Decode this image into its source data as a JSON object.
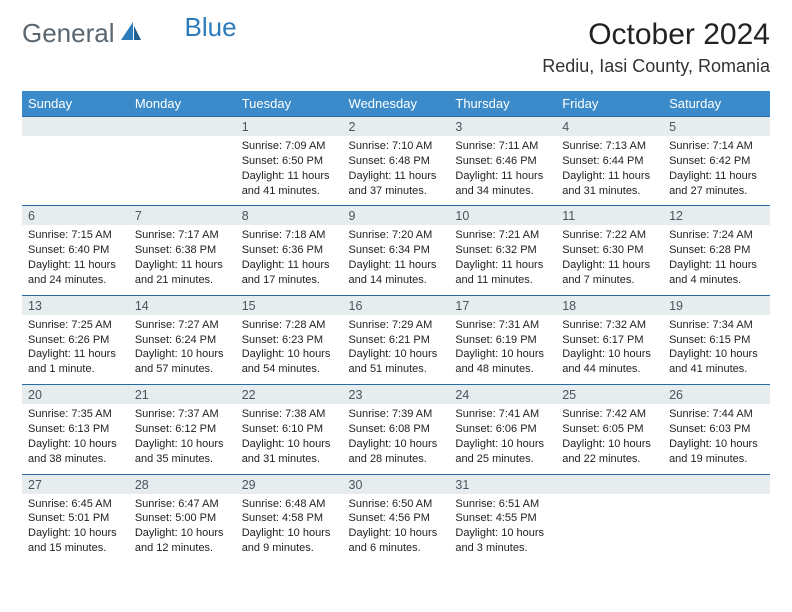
{
  "logo": {
    "text1": "General",
    "text2": "Blue"
  },
  "title": "October 2024",
  "location": "Rediu, Iasi County, Romania",
  "colors": {
    "header_bg": "#3b8bca",
    "header_text": "#ffffff",
    "daynum_bg": "#e7ecef",
    "daynum_text": "#4a5560",
    "rule": "#2b6aa0",
    "logo_gray": "#5a6670",
    "logo_blue": "#2b7bbd"
  },
  "weekdays": [
    "Sunday",
    "Monday",
    "Tuesday",
    "Wednesday",
    "Thursday",
    "Friday",
    "Saturday"
  ],
  "weeks": [
    [
      null,
      null,
      {
        "n": "1",
        "sr": "Sunrise: 7:09 AM",
        "ss": "Sunset: 6:50 PM",
        "dl": "Daylight: 11 hours and 41 minutes."
      },
      {
        "n": "2",
        "sr": "Sunrise: 7:10 AM",
        "ss": "Sunset: 6:48 PM",
        "dl": "Daylight: 11 hours and 37 minutes."
      },
      {
        "n": "3",
        "sr": "Sunrise: 7:11 AM",
        "ss": "Sunset: 6:46 PM",
        "dl": "Daylight: 11 hours and 34 minutes."
      },
      {
        "n": "4",
        "sr": "Sunrise: 7:13 AM",
        "ss": "Sunset: 6:44 PM",
        "dl": "Daylight: 11 hours and 31 minutes."
      },
      {
        "n": "5",
        "sr": "Sunrise: 7:14 AM",
        "ss": "Sunset: 6:42 PM",
        "dl": "Daylight: 11 hours and 27 minutes."
      }
    ],
    [
      {
        "n": "6",
        "sr": "Sunrise: 7:15 AM",
        "ss": "Sunset: 6:40 PM",
        "dl": "Daylight: 11 hours and 24 minutes."
      },
      {
        "n": "7",
        "sr": "Sunrise: 7:17 AM",
        "ss": "Sunset: 6:38 PM",
        "dl": "Daylight: 11 hours and 21 minutes."
      },
      {
        "n": "8",
        "sr": "Sunrise: 7:18 AM",
        "ss": "Sunset: 6:36 PM",
        "dl": "Daylight: 11 hours and 17 minutes."
      },
      {
        "n": "9",
        "sr": "Sunrise: 7:20 AM",
        "ss": "Sunset: 6:34 PM",
        "dl": "Daylight: 11 hours and 14 minutes."
      },
      {
        "n": "10",
        "sr": "Sunrise: 7:21 AM",
        "ss": "Sunset: 6:32 PM",
        "dl": "Daylight: 11 hours and 11 minutes."
      },
      {
        "n": "11",
        "sr": "Sunrise: 7:22 AM",
        "ss": "Sunset: 6:30 PM",
        "dl": "Daylight: 11 hours and 7 minutes."
      },
      {
        "n": "12",
        "sr": "Sunrise: 7:24 AM",
        "ss": "Sunset: 6:28 PM",
        "dl": "Daylight: 11 hours and 4 minutes."
      }
    ],
    [
      {
        "n": "13",
        "sr": "Sunrise: 7:25 AM",
        "ss": "Sunset: 6:26 PM",
        "dl": "Daylight: 11 hours and 1 minute."
      },
      {
        "n": "14",
        "sr": "Sunrise: 7:27 AM",
        "ss": "Sunset: 6:24 PM",
        "dl": "Daylight: 10 hours and 57 minutes."
      },
      {
        "n": "15",
        "sr": "Sunrise: 7:28 AM",
        "ss": "Sunset: 6:23 PM",
        "dl": "Daylight: 10 hours and 54 minutes."
      },
      {
        "n": "16",
        "sr": "Sunrise: 7:29 AM",
        "ss": "Sunset: 6:21 PM",
        "dl": "Daylight: 10 hours and 51 minutes."
      },
      {
        "n": "17",
        "sr": "Sunrise: 7:31 AM",
        "ss": "Sunset: 6:19 PM",
        "dl": "Daylight: 10 hours and 48 minutes."
      },
      {
        "n": "18",
        "sr": "Sunrise: 7:32 AM",
        "ss": "Sunset: 6:17 PM",
        "dl": "Daylight: 10 hours and 44 minutes."
      },
      {
        "n": "19",
        "sr": "Sunrise: 7:34 AM",
        "ss": "Sunset: 6:15 PM",
        "dl": "Daylight: 10 hours and 41 minutes."
      }
    ],
    [
      {
        "n": "20",
        "sr": "Sunrise: 7:35 AM",
        "ss": "Sunset: 6:13 PM",
        "dl": "Daylight: 10 hours and 38 minutes."
      },
      {
        "n": "21",
        "sr": "Sunrise: 7:37 AM",
        "ss": "Sunset: 6:12 PM",
        "dl": "Daylight: 10 hours and 35 minutes."
      },
      {
        "n": "22",
        "sr": "Sunrise: 7:38 AM",
        "ss": "Sunset: 6:10 PM",
        "dl": "Daylight: 10 hours and 31 minutes."
      },
      {
        "n": "23",
        "sr": "Sunrise: 7:39 AM",
        "ss": "Sunset: 6:08 PM",
        "dl": "Daylight: 10 hours and 28 minutes."
      },
      {
        "n": "24",
        "sr": "Sunrise: 7:41 AM",
        "ss": "Sunset: 6:06 PM",
        "dl": "Daylight: 10 hours and 25 minutes."
      },
      {
        "n": "25",
        "sr": "Sunrise: 7:42 AM",
        "ss": "Sunset: 6:05 PM",
        "dl": "Daylight: 10 hours and 22 minutes."
      },
      {
        "n": "26",
        "sr": "Sunrise: 7:44 AM",
        "ss": "Sunset: 6:03 PM",
        "dl": "Daylight: 10 hours and 19 minutes."
      }
    ],
    [
      {
        "n": "27",
        "sr": "Sunrise: 6:45 AM",
        "ss": "Sunset: 5:01 PM",
        "dl": "Daylight: 10 hours and 15 minutes."
      },
      {
        "n": "28",
        "sr": "Sunrise: 6:47 AM",
        "ss": "Sunset: 5:00 PM",
        "dl": "Daylight: 10 hours and 12 minutes."
      },
      {
        "n": "29",
        "sr": "Sunrise: 6:48 AM",
        "ss": "Sunset: 4:58 PM",
        "dl": "Daylight: 10 hours and 9 minutes."
      },
      {
        "n": "30",
        "sr": "Sunrise: 6:50 AM",
        "ss": "Sunset: 4:56 PM",
        "dl": "Daylight: 10 hours and 6 minutes."
      },
      {
        "n": "31",
        "sr": "Sunrise: 6:51 AM",
        "ss": "Sunset: 4:55 PM",
        "dl": "Daylight: 10 hours and 3 minutes."
      },
      null,
      null
    ]
  ]
}
